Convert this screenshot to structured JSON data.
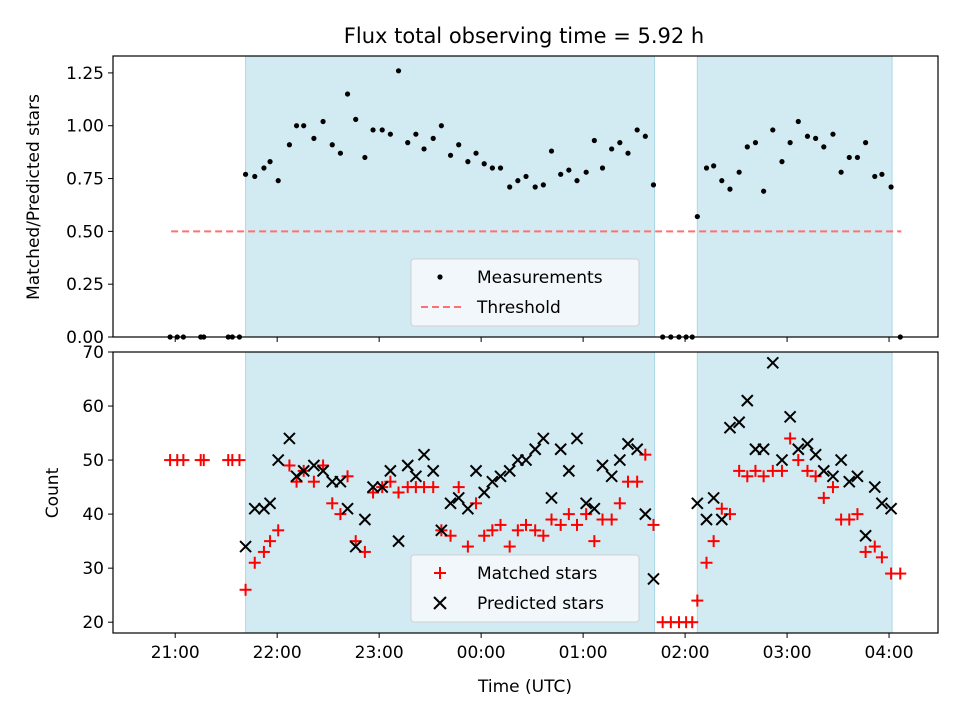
{
  "title": "Flux total observing time = 5.92 h",
  "colors": {
    "shade": "#add8e6",
    "measurement": "#000000",
    "threshold": "#ff7070",
    "matched": "#ff0000",
    "predicted": "#000000"
  },
  "x_ticks": [
    {
      "label": "21:00",
      "t": 21.0
    },
    {
      "label": "22:00",
      "t": 22.0
    },
    {
      "label": "23:00",
      "t": 23.0
    },
    {
      "label": "00:00",
      "t": 24.0
    },
    {
      "label": "01:00",
      "t": 25.0
    },
    {
      "label": "02:00",
      "t": 26.0
    },
    {
      "label": "03:00",
      "t": 27.0
    },
    {
      "label": "04:00",
      "t": 28.0
    }
  ],
  "chart_data": [
    {
      "type": "scatter",
      "ylabel": "Matched/Predicted stars",
      "xlim": [
        20.39,
        28.48
      ],
      "ylim": [
        0,
        1.33
      ],
      "x_unit_note": "",
      "yticks": [
        "0.00",
        "0.25",
        "0.50",
        "0.75",
        "1.00",
        "1.25"
      ],
      "ytick_values": [
        0,
        0.25,
        0.5,
        0.75,
        1.0,
        1.25
      ],
      "shaded_intervals": [
        [
          21.69,
          25.7
        ],
        [
          26.12,
          28.03
        ]
      ],
      "threshold": {
        "name": "Threshold",
        "y": 0.5,
        "x": [
          20.96,
          28.12
        ]
      },
      "legend": {
        "placement": "lower-center",
        "entries": [
          "Measurements",
          "Threshold"
        ]
      },
      "series": [
        {
          "name": "Measurements",
          "x": [
            20.95,
            21.02,
            21.08,
            21.25,
            21.28,
            21.52,
            21.56,
            21.63,
            21.69,
            21.78,
            21.87,
            21.93,
            22.01,
            22.12,
            22.19,
            22.26,
            22.36,
            22.45,
            22.54,
            22.62,
            22.69,
            22.77,
            22.86,
            22.94,
            23.03,
            23.11,
            23.19,
            23.28,
            23.36,
            23.44,
            23.53,
            23.61,
            23.7,
            23.78,
            23.87,
            23.95,
            24.03,
            24.11,
            24.19,
            24.28,
            24.36,
            24.44,
            24.53,
            24.61,
            24.69,
            24.78,
            24.86,
            24.94,
            25.03,
            25.11,
            25.19,
            25.28,
            25.36,
            25.44,
            25.53,
            25.61,
            25.69,
            25.78,
            25.86,
            25.94,
            26.01,
            26.07,
            26.12,
            26.21,
            26.28,
            26.36,
            26.44,
            26.53,
            26.61,
            26.69,
            26.77,
            26.86,
            26.95,
            27.03,
            27.11,
            27.2,
            27.28,
            27.36,
            27.45,
            27.53,
            27.61,
            27.69,
            27.77,
            27.86,
            27.93,
            28.02,
            28.11
          ],
          "values": [
            0,
            0,
            0,
            0,
            0,
            0,
            0,
            0,
            0.77,
            0.76,
            0.8,
            0.83,
            0.74,
            0.91,
            1.0,
            1.0,
            0.94,
            1.02,
            0.91,
            0.87,
            1.15,
            1.03,
            0.85,
            0.98,
            0.98,
            0.96,
            1.26,
            0.92,
            0.96,
            0.89,
            0.94,
            1.0,
            0.86,
            0.91,
            0.83,
            0.87,
            0.82,
            0.8,
            0.8,
            0.71,
            0.74,
            0.76,
            0.71,
            0.72,
            0.88,
            0.77,
            0.79,
            0.74,
            0.78,
            0.93,
            0.8,
            0.89,
            0.92,
            0.87,
            0.98,
            0.95,
            0.72,
            0,
            0,
            0,
            0,
            0,
            0.57,
            0.8,
            0.81,
            0.74,
            0.7,
            0.78,
            0.9,
            0.92,
            0.69,
            0.98,
            0.83,
            0.92,
            1.02,
            0.95,
            0.94,
            0.9,
            0.96,
            0.78,
            0.85,
            0.85,
            0.92,
            0.76,
            0.77,
            0.71,
            0
          ]
        }
      ]
    },
    {
      "type": "scatter",
      "ylabel": "Count",
      "xlabel": "Time (UTC)",
      "xlim": [
        20.39,
        28.48
      ],
      "ylim": [
        18,
        70
      ],
      "yticks": [
        "20",
        "30",
        "40",
        "50",
        "60",
        "70"
      ],
      "ytick_values": [
        20,
        30,
        40,
        50,
        60,
        70
      ],
      "shaded_intervals": [
        [
          21.69,
          25.7
        ],
        [
          26.12,
          28.03
        ]
      ],
      "legend": {
        "placement": "lower-center",
        "entries": [
          "Matched stars",
          "Predicted stars"
        ]
      },
      "series": [
        {
          "name": "Matched stars",
          "marker": "plus",
          "x": [
            20.95,
            21.02,
            21.08,
            21.25,
            21.28,
            21.52,
            21.56,
            21.63,
            21.69,
            21.78,
            21.87,
            21.93,
            22.01,
            22.12,
            22.19,
            22.26,
            22.36,
            22.45,
            22.54,
            22.62,
            22.69,
            22.77,
            22.86,
            22.94,
            23.03,
            23.11,
            23.19,
            23.28,
            23.36,
            23.44,
            23.53,
            23.61,
            23.7,
            23.78,
            23.87,
            23.95,
            24.03,
            24.11,
            24.19,
            24.28,
            24.36,
            24.44,
            24.53,
            24.61,
            24.69,
            24.78,
            24.86,
            24.94,
            25.03,
            25.11,
            25.19,
            25.28,
            25.36,
            25.44,
            25.53,
            25.61,
            25.69,
            25.78,
            25.86,
            25.94,
            26.01,
            26.07,
            26.12,
            26.21,
            26.28,
            26.36,
            26.44,
            26.53,
            26.61,
            26.69,
            26.77,
            26.86,
            26.95,
            27.03,
            27.11,
            27.2,
            27.28,
            27.36,
            27.45,
            27.53,
            27.61,
            27.69,
            27.77,
            27.86,
            27.93,
            28.02,
            28.11
          ],
          "values": [
            50,
            50,
            50,
            50,
            50,
            50,
            50,
            50,
            26,
            31,
            33,
            35,
            37,
            49,
            46,
            48,
            46,
            49,
            42,
            40,
            47,
            35,
            33,
            44,
            45,
            46,
            44,
            45,
            45,
            45,
            45,
            37,
            36,
            45,
            34,
            42,
            36,
            37,
            38,
            34,
            37,
            38,
            37,
            36,
            39,
            38,
            40,
            38,
            40,
            35,
            39,
            39,
            42,
            46,
            46,
            51,
            38,
            20,
            20,
            20,
            20,
            20,
            24,
            31,
            35,
            41,
            40,
            48,
            47,
            48,
            47,
            48,
            48,
            54,
            50,
            48,
            47,
            43,
            45,
            39,
            39,
            40,
            33,
            34,
            32,
            29,
            29
          ]
        },
        {
          "name": "Predicted stars",
          "marker": "x",
          "x": [
            21.69,
            21.78,
            21.87,
            21.93,
            22.01,
            22.12,
            22.19,
            22.26,
            22.36,
            22.45,
            22.54,
            22.62,
            22.69,
            22.77,
            22.86,
            22.94,
            23.03,
            23.11,
            23.19,
            23.28,
            23.36,
            23.44,
            23.53,
            23.61,
            23.7,
            23.78,
            23.87,
            23.95,
            24.03,
            24.11,
            24.19,
            24.28,
            24.36,
            24.44,
            24.53,
            24.61,
            24.69,
            24.78,
            24.86,
            24.94,
            25.03,
            25.11,
            25.19,
            25.28,
            25.36,
            25.44,
            25.53,
            25.61,
            25.69,
            26.12,
            26.21,
            26.28,
            26.36,
            26.44,
            26.53,
            26.61,
            26.69,
            26.77,
            26.86,
            26.95,
            27.03,
            27.11,
            27.2,
            27.28,
            27.36,
            27.45,
            27.53,
            27.61,
            27.69,
            27.77,
            27.86,
            27.93,
            28.02
          ],
          "values": [
            34,
            41,
            41,
            42,
            50,
            54,
            47,
            48,
            49,
            48,
            46,
            46,
            41,
            34,
            39,
            45,
            45,
            48,
            35,
            49,
            47,
            51,
            48,
            37,
            42,
            43,
            41,
            48,
            44,
            46,
            47,
            48,
            50,
            50,
            52,
            54,
            43,
            52,
            48,
            54,
            42,
            41,
            49,
            47,
            50,
            53,
            52,
            40,
            28,
            42,
            39,
            43,
            39,
            56,
            57,
            61,
            52,
            52,
            68,
            50,
            58,
            52,
            53,
            51,
            48,
            47,
            50,
            46,
            47,
            36,
            45,
            42,
            41
          ]
        }
      ]
    }
  ]
}
